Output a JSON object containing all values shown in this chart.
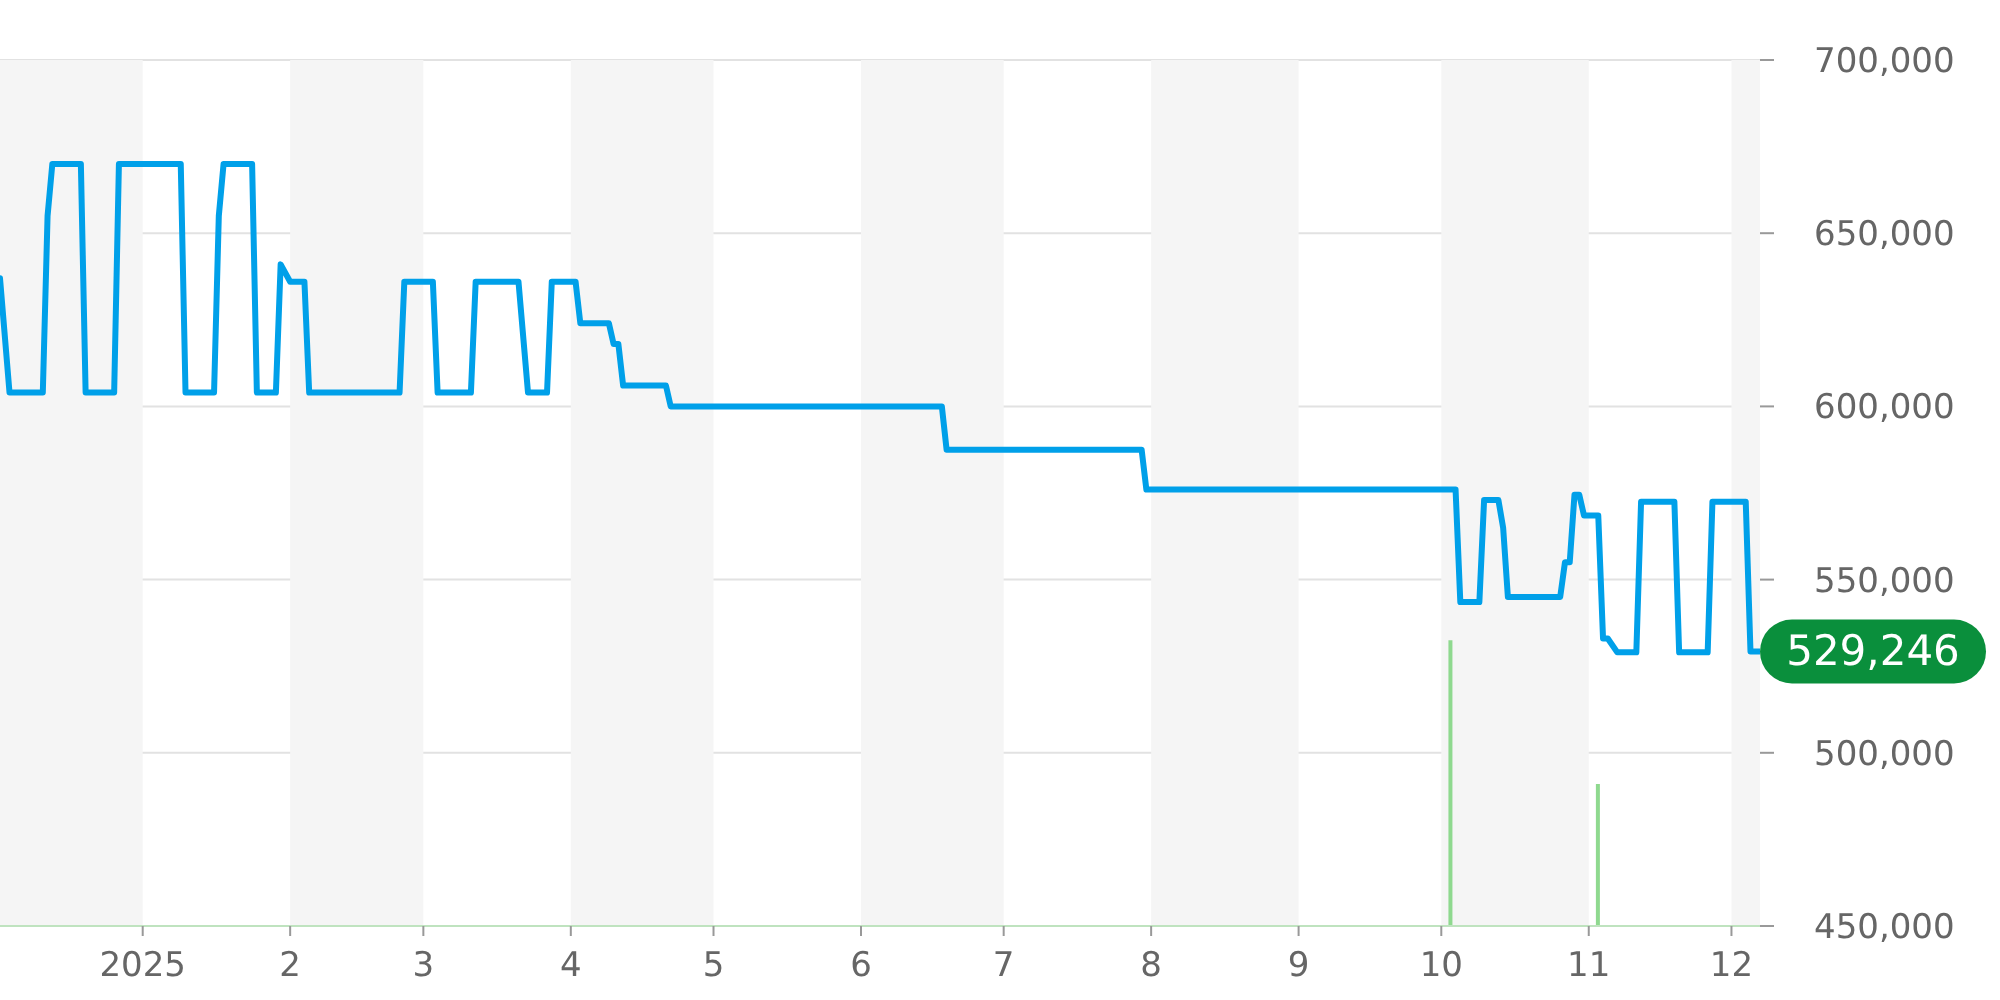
{
  "chart_data": {
    "type": "line",
    "x": [
      "2024-12-02",
      "2024-12-04",
      "2024-12-11",
      "2024-12-12",
      "2024-12-13",
      "2024-12-19",
      "2024-12-20",
      "2024-12-26",
      "2024-12-27",
      "2025-01-09",
      "2025-01-10",
      "2025-01-16",
      "2025-01-17",
      "2025-01-18",
      "2025-01-24",
      "2025-01-25",
      "2025-01-29",
      "2025-01-30",
      "2025-02-01",
      "2025-02-04",
      "2025-02-05",
      "2025-02-24",
      "2025-02-25",
      "2025-03-03",
      "2025-03-04",
      "2025-03-11",
      "2025-03-12",
      "2025-03-21",
      "2025-03-23",
      "2025-03-27",
      "2025-03-28",
      "2025-04-02",
      "2025-04-03",
      "2025-04-09",
      "2025-04-10",
      "2025-04-11",
      "2025-04-12",
      "2025-04-21",
      "2025-04-22",
      "2025-06-18",
      "2025-06-19",
      "2025-07-30",
      "2025-07-31",
      "2025-10-04",
      "2025-10-05",
      "2025-10-09",
      "2025-10-10",
      "2025-10-13",
      "2025-10-14",
      "2025-10-15",
      "2025-10-26",
      "2025-10-27",
      "2025-10-28",
      "2025-10-29",
      "2025-10-30",
      "2025-10-31",
      "2025-11-03",
      "2025-11-04",
      "2025-11-05",
      "2025-11-07",
      "2025-11-11",
      "2025-11-12",
      "2025-11-19",
      "2025-11-20",
      "2025-11-26",
      "2025-11-27",
      "2025-12-04",
      "2025-12-05",
      "2025-12-07"
    ],
    "series": [
      {
        "color": "#00a0e9",
        "values": [
          637000,
          604000,
          604000,
          655000,
          670000,
          670000,
          604000,
          604000,
          670000,
          670000,
          604000,
          604000,
          655000,
          670000,
          670000,
          604000,
          604000,
          641000,
          636000,
          636000,
          604000,
          604000,
          636000,
          636000,
          604000,
          604000,
          636000,
          636000,
          604000,
          604000,
          636000,
          636000,
          624000,
          624000,
          618000,
          618000,
          606000,
          606000,
          600000,
          600000,
          587500,
          587500,
          576000,
          576000,
          543500,
          543500,
          573000,
          573000,
          565000,
          545000,
          545000,
          555000,
          555000,
          574500,
          574500,
          568500,
          568500,
          533000,
          533000,
          529000,
          529000,
          572500,
          572500,
          529000,
          529000,
          572500,
          572500,
          529246,
          529246
        ]
      },
      {
        "type": "bar",
        "x": [
          "2025-10-03",
          "2025-11-03"
        ],
        "color": "#8fd98f",
        "values": [
          532500,
          491000
        ]
      }
    ],
    "xlim": [
      "2024-12-02",
      "2025-12-07"
    ],
    "xticks": [
      {
        "value": "2025-01-01",
        "label": "2025"
      },
      {
        "value": "2025-02-01",
        "label": "2"
      },
      {
        "value": "2025-03-01",
        "label": "3"
      },
      {
        "value": "2025-04-01",
        "label": "4"
      },
      {
        "value": "2025-05-01",
        "label": "5"
      },
      {
        "value": "2025-06-01",
        "label": "6"
      },
      {
        "value": "2025-07-01",
        "label": "7"
      },
      {
        "value": "2025-08-01",
        "label": "8"
      },
      {
        "value": "2025-09-01",
        "label": "9"
      },
      {
        "value": "2025-10-01",
        "label": "10"
      },
      {
        "value": "2025-11-01",
        "label": "11"
      },
      {
        "value": "2025-12-01",
        "label": "12"
      }
    ],
    "ylim": [
      450000,
      700000
    ],
    "yticks": [
      {
        "value": 450000,
        "label": "450,000"
      },
      {
        "value": 500000,
        "label": "500,000"
      },
      {
        "value": 550000,
        "label": "550,000"
      },
      {
        "value": 600000,
        "label": "600,000"
      },
      {
        "value": 650000,
        "label": "650,000"
      },
      {
        "value": 700000,
        "label": "700,000"
      }
    ],
    "grid": "y",
    "marker": "none",
    "line_style": "solid",
    "bands": [
      {
        "axis": "x",
        "from": "2024-12-02",
        "to": "2025-01-01",
        "color": "#f5f5f5"
      },
      {
        "axis": "x",
        "from": "2025-02-01",
        "to": "2025-03-01",
        "color": "#f5f5f5"
      },
      {
        "axis": "x",
        "from": "2025-04-01",
        "to": "2025-05-01",
        "color": "#f5f5f5"
      },
      {
        "axis": "x",
        "from": "2025-06-01",
        "to": "2025-07-01",
        "color": "#f5f5f5"
      },
      {
        "axis": "x",
        "from": "2025-08-01",
        "to": "2025-09-01",
        "color": "#f5f5f5"
      },
      {
        "axis": "x",
        "from": "2025-10-01",
        "to": "2025-11-01",
        "color": "#f5f5f5"
      },
      {
        "axis": "x",
        "from": "2025-12-01",
        "to": "2025-12-07",
        "color": "#f5f5f5"
      }
    ],
    "annotations": [
      {
        "text": "529,246",
        "x": "2025-12-07",
        "y": 529246
      }
    ]
  }
}
